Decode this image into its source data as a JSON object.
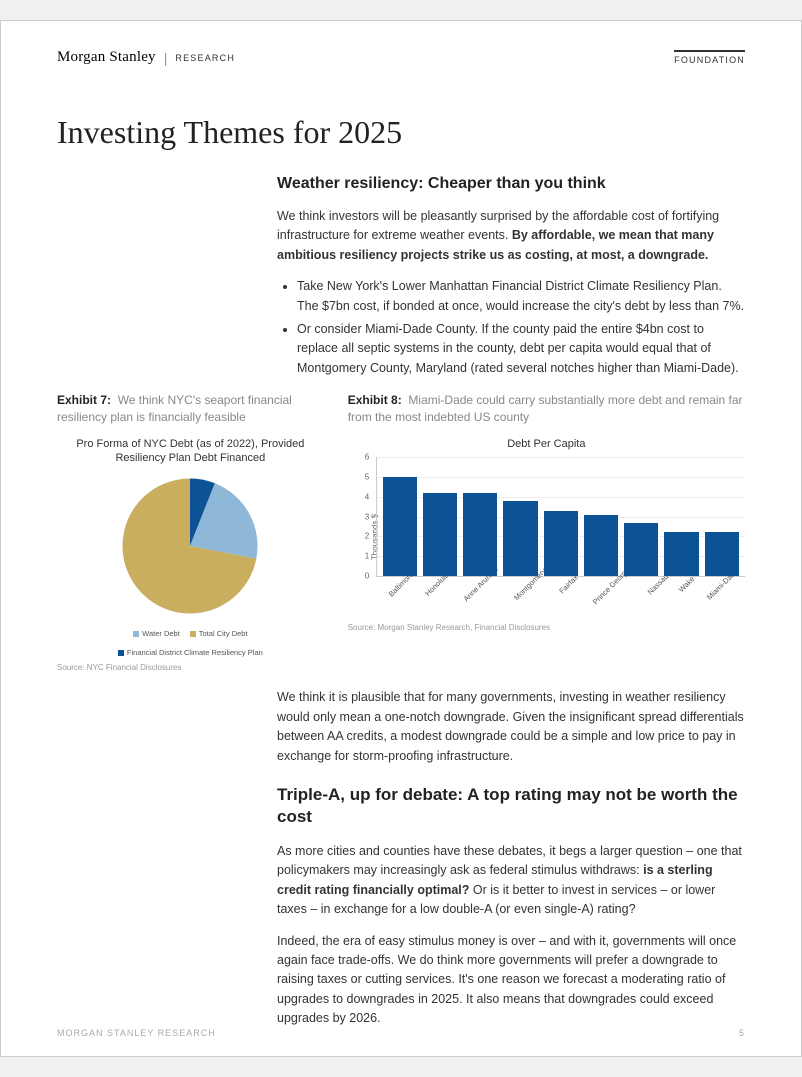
{
  "header": {
    "brand": "Morgan Stanley",
    "sub": "RESEARCH",
    "right": "FOUNDATION"
  },
  "title": "Investing Themes for 2025",
  "s1": {
    "heading": "Weather resiliency: Cheaper than you think",
    "p1a": "We think investors will be pleasantly surprised by the affordable cost of fortifying infrastructure for extreme weather events. ",
    "p1b": "By affordable, we mean that many ambitious resiliency projects strike us as costing, at most, a downgrade.",
    "b1": "Take New York's Lower Manhattan Financial District Climate Resiliency Plan. The $7bn cost, if bonded at once, would increase the city's debt by less than 7%.",
    "b2": "Or consider Miami-Dade County. If the county paid the entire $4bn cost to replace all septic systems in the county, debt per capita would equal that of Montgomery County, Maryland (rated several notches higher than Miami-Dade)."
  },
  "ex7": {
    "label": "Exhibit 7:",
    "caption": "We think NYC's seaport financial resiliency plan is financially feasible",
    "chart_title": "Pro Forma of NYC Debt (as of 2022), Provided Resiliency Plan Debt Financed",
    "source": "Source: NYC Financial Disclosures",
    "pie": {
      "slices": [
        {
          "label": "Total City Debt",
          "value": 72,
          "color": "#c9ae5f"
        },
        {
          "label": "Water Debt",
          "value": 22,
          "color": "#8fb7d8"
        },
        {
          "label": "Financial District Climate Resiliency Plan",
          "value": 6,
          "color": "#0b5394"
        }
      ],
      "bg": "#ffffff"
    },
    "legend": {
      "l1": "Water Debt",
      "l2": "Total City Debt",
      "l3": "Financial District Climate Resiliency Plan"
    }
  },
  "ex8": {
    "label": "Exhibit 8:",
    "caption": "Miami-Dade could carry substantially more debt and remain far from the most indebted US county",
    "chart_title": "Debt Per Capita",
    "ylabel": "Thousands $",
    "source": "Source: Morgan Stanley Research, Financial Disclosures",
    "ymax": 6,
    "ystep": 1,
    "bar_color": "#0b5394",
    "grid_color": "#eeeeee",
    "bars": [
      {
        "label": "Baltimore",
        "value": 5.0
      },
      {
        "label": "Honolulu",
        "value": 4.2
      },
      {
        "label": "Anne Arundel",
        "value": 4.2
      },
      {
        "label": "Montgomery",
        "value": 3.8
      },
      {
        "label": "Fairfax",
        "value": 3.3
      },
      {
        "label": "Prince George's",
        "value": 3.1
      },
      {
        "label": "Nassau",
        "value": 2.7
      },
      {
        "label": "Wake",
        "value": 2.2
      },
      {
        "label": "Miami-Dade",
        "value": 2.2
      }
    ]
  },
  "p2": "We think it is plausible that for many governments, investing in weather resiliency would only mean a one-notch downgrade. Given the insignificant spread differentials between AA credits, a modest downgrade could be a simple and low price to pay in exchange for storm-proofing infrastructure.",
  "s2": {
    "heading": "Triple-A, up for debate: A top rating may not be worth the cost",
    "p1a": "As more cities and counties have these debates, it begs a larger question – one that policymakers may increasingly ask as federal stimulus withdraws: ",
    "p1b": "is a sterling credit rating financially optimal?",
    "p1c": " Or is it better to invest in services – or lower taxes – in exchange for a low double-A (or even single-A) rating?",
    "p2": "Indeed, the era of easy stimulus money is over – and with it, governments will once again face trade-offs. We do think more governments will prefer a downgrade to raising taxes or cutting services. It's one reason we forecast a moderating ratio of upgrades to downgrades in 2025. It also means that downgrades could exceed upgrades by 2026."
  },
  "footer": {
    "left": "MORGAN STANLEY RESEARCH",
    "page": "5"
  }
}
